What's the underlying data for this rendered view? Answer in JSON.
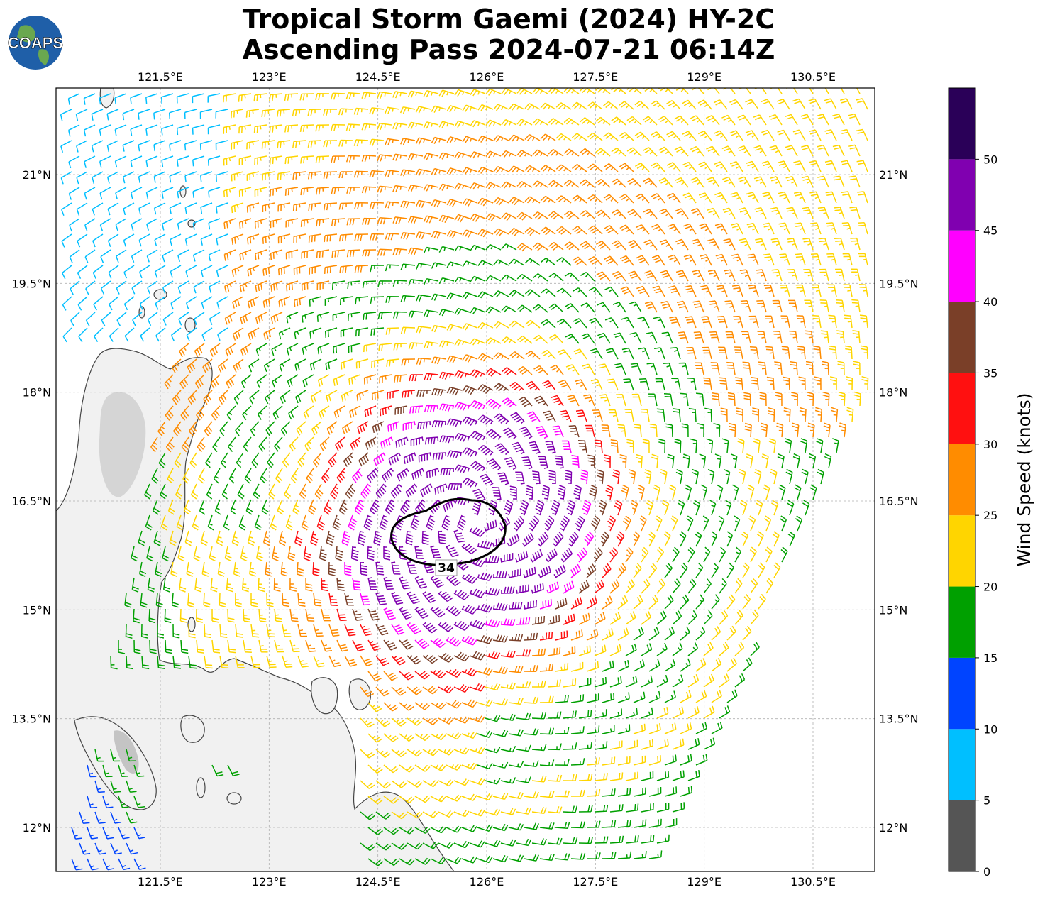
{
  "title_line1": "Tropical Storm Gaemi (2024) HY-2C",
  "title_line2": "Ascending Pass 2024-07-21 06:14Z",
  "logo_text": "COAPS",
  "longitude_ticks": [
    "121.5°E",
    "123°E",
    "124.5°E",
    "126°E",
    "127.5°E",
    "129°E",
    "130.5°E"
  ],
  "latitude_ticks": [
    "21°N",
    "19.5°N",
    "18°N",
    "16.5°N",
    "15°N",
    "13.5°N",
    "12°N"
  ],
  "contour_label": "34",
  "colorbar": {
    "label": "Wind Speed (knots)",
    "ticks": [
      "0",
      "5",
      "10",
      "15",
      "20",
      "25",
      "30",
      "35",
      "40",
      "45",
      "50"
    ],
    "colors": [
      "#555555",
      "#00bfff",
      "#0044ff",
      "#00a000",
      "#ffd500",
      "#ff8c00",
      "#ff1010",
      "#7a3f28",
      "#ff00ff",
      "#8000b0",
      "#2a0058"
    ]
  },
  "map_data": {
    "extent_lon": [
      120.0,
      131.3
    ],
    "extent_lat": [
      11.4,
      22.2
    ],
    "storm_center_lon": 125.8,
    "storm_center_lat": 16.3,
    "wind_field": "cyclonic"
  }
}
